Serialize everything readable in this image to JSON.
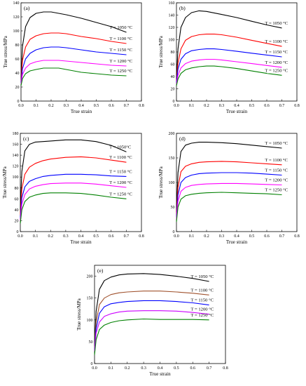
{
  "chart_data": [
    {
      "type": "line",
      "panel_label": "(a)",
      "xlabel": "True strain",
      "ylabel": "True stress/MPa",
      "xlim": [
        0.0,
        0.8
      ],
      "ylim": [
        0,
        140
      ],
      "xticks": [
        "0.0",
        "0.1",
        "0.2",
        "0.3",
        "0.4",
        "0.5",
        "0.6",
        "0.7",
        "0.8"
      ],
      "yticks": [
        "0",
        "20",
        "40",
        "60",
        "80",
        "100",
        "120",
        "140"
      ],
      "series": [
        {
          "name": "T = 1050 °C",
          "color": "#000000",
          "x": [
            0,
            0.01,
            0.03,
            0.06,
            0.1,
            0.15,
            0.2,
            0.3,
            0.4,
            0.5,
            0.6,
            0.65,
            0.7
          ],
          "y": [
            30,
            78,
            106,
            119,
            125,
            127,
            127,
            123,
            118,
            112,
            106,
            102,
            98
          ]
        },
        {
          "name": "T = 1100 °C",
          "color": "#ff0000",
          "x": [
            0,
            0.01,
            0.03,
            0.06,
            0.1,
            0.15,
            0.2,
            0.25,
            0.3,
            0.4,
            0.5,
            0.6,
            0.7
          ],
          "y": [
            28,
            58,
            77,
            88,
            93,
            96,
            97,
            97,
            96,
            92,
            89,
            85,
            82
          ]
        },
        {
          "name": "T = 1150 °C",
          "color": "#0000ff",
          "x": [
            0,
            0.01,
            0.03,
            0.06,
            0.1,
            0.15,
            0.2,
            0.25,
            0.3,
            0.4,
            0.5,
            0.6,
            0.7
          ],
          "y": [
            26,
            46,
            60,
            68,
            73,
            76,
            77,
            77,
            76,
            73,
            70,
            68,
            66
          ]
        },
        {
          "name": "T = 1200 °C",
          "color": "#ff00ff",
          "x": [
            0,
            0.01,
            0.03,
            0.06,
            0.1,
            0.15,
            0.2,
            0.25,
            0.3,
            0.4,
            0.5,
            0.6,
            0.7
          ],
          "y": [
            24,
            38,
            47,
            53,
            56,
            58,
            58,
            58,
            57,
            55,
            53,
            51,
            50
          ]
        },
        {
          "name": "T = 1250 °C",
          "color": "#008000",
          "x": [
            0,
            0.01,
            0.03,
            0.06,
            0.1,
            0.15,
            0.2,
            0.25,
            0.3,
            0.4,
            0.5,
            0.6,
            0.7
          ],
          "y": [
            22,
            32,
            39,
            43,
            45,
            47,
            47,
            47,
            45,
            41,
            39,
            37,
            36
          ]
        }
      ]
    },
    {
      "type": "line",
      "panel_label": "(b)",
      "xlabel": "True strain",
      "ylabel": "True stress/MPa",
      "xlim": [
        0.0,
        0.8
      ],
      "ylim": [
        0,
        160
      ],
      "xticks": [
        "0.0",
        "0.1",
        "0.2",
        "0.3",
        "0.4",
        "0.5",
        "0.6",
        "0.7",
        "0.8"
      ],
      "yticks": [
        "0",
        "20",
        "40",
        "60",
        "80",
        "100",
        "120",
        "140",
        "160"
      ],
      "series": [
        {
          "name": "T = 1050 °C",
          "color": "#000000",
          "x": [
            0,
            0.01,
            0.03,
            0.06,
            0.1,
            0.15,
            0.2,
            0.3,
            0.4,
            0.5,
            0.6,
            0.7
          ],
          "y": [
            35,
            85,
            120,
            136,
            144,
            147,
            146,
            141,
            136,
            130,
            124,
            119
          ]
        },
        {
          "name": "T = 1100 °C",
          "color": "#ff0000",
          "x": [
            0,
            0.01,
            0.03,
            0.06,
            0.1,
            0.15,
            0.2,
            0.25,
            0.3,
            0.4,
            0.5,
            0.6,
            0.7
          ],
          "y": [
            32,
            62,
            85,
            99,
            105,
            108,
            109,
            109,
            108,
            104,
            99,
            94,
            89
          ]
        },
        {
          "name": "T = 1150 °C",
          "color": "#0000ff",
          "x": [
            0,
            0.01,
            0.03,
            0.06,
            0.1,
            0.15,
            0.2,
            0.25,
            0.3,
            0.4,
            0.5,
            0.6,
            0.7
          ],
          "y": [
            30,
            52,
            68,
            77,
            82,
            84,
            85,
            85,
            84,
            81,
            78,
            75,
            72
          ]
        },
        {
          "name": "T = 1200 °C",
          "color": "#ff00ff",
          "x": [
            0,
            0.01,
            0.03,
            0.06,
            0.1,
            0.15,
            0.2,
            0.25,
            0.3,
            0.4,
            0.5,
            0.6,
            0.7
          ],
          "y": [
            27,
            42,
            54,
            61,
            65,
            67,
            68,
            68,
            67,
            64,
            61,
            58,
            55
          ]
        },
        {
          "name": "T = 1250 °C",
          "color": "#008000",
          "x": [
            0,
            0.01,
            0.03,
            0.06,
            0.1,
            0.15,
            0.2,
            0.25,
            0.3,
            0.4,
            0.5,
            0.6,
            0.7
          ],
          "y": [
            25,
            36,
            45,
            51,
            54,
            56,
            57,
            57,
            56,
            53,
            49,
            45,
            42
          ]
        }
      ]
    },
    {
      "type": "line",
      "panel_label": "(c)",
      "xlabel": "True strain",
      "ylabel": "True stress/MPa",
      "xlim": [
        0.0,
        0.8
      ],
      "ylim": [
        0,
        180
      ],
      "xticks": [
        "0.0",
        "0.1",
        "0.2",
        "0.3",
        "0.4",
        "0.5",
        "0.6",
        "0.7",
        "0.8"
      ],
      "yticks": [
        "0",
        "20",
        "40",
        "60",
        "80",
        "100",
        "120",
        "140",
        "160",
        "180"
      ],
      "series": [
        {
          "name": "T = 1050°C",
          "color": "#000000",
          "x": [
            0,
            0.01,
            0.03,
            0.06,
            0.1,
            0.2,
            0.3,
            0.4,
            0.5,
            0.6,
            0.65,
            0.7
          ],
          "y": [
            40,
            110,
            148,
            160,
            164,
            166,
            168,
            168,
            165,
            158,
            152,
            146
          ]
        },
        {
          "name": "T = 1100 °C",
          "color": "#ff0000",
          "x": [
            0,
            0.01,
            0.03,
            0.06,
            0.1,
            0.15,
            0.2,
            0.3,
            0.4,
            0.5,
            0.6,
            0.7
          ],
          "y": [
            30,
            78,
            105,
            118,
            125,
            130,
            133,
            136,
            137,
            135,
            131,
            127
          ]
        },
        {
          "name": "T = 1150 °C",
          "color": "#0000ff",
          "x": [
            0,
            0.01,
            0.03,
            0.06,
            0.1,
            0.15,
            0.2,
            0.3,
            0.4,
            0.5,
            0.6,
            0.7
          ],
          "y": [
            25,
            62,
            82,
            92,
            97,
            101,
            103,
            105,
            105,
            104,
            102,
            101
          ]
        },
        {
          "name": "T = 1200 °C",
          "color": "#ff00ff",
          "x": [
            0,
            0.01,
            0.03,
            0.06,
            0.1,
            0.15,
            0.2,
            0.3,
            0.4,
            0.5,
            0.6,
            0.7
          ],
          "y": [
            20,
            50,
            68,
            78,
            83,
            86,
            88,
            89,
            89,
            87,
            84,
            81
          ]
        },
        {
          "name": "T = 1250 °C",
          "color": "#008000",
          "x": [
            0,
            0.01,
            0.03,
            0.06,
            0.1,
            0.15,
            0.2,
            0.3,
            0.4,
            0.5,
            0.6,
            0.7
          ],
          "y": [
            15,
            40,
            55,
            63,
            67,
            70,
            71,
            71,
            70,
            67,
            63,
            60
          ]
        }
      ]
    },
    {
      "type": "line",
      "panel_label": "(d)",
      "xlabel": "True strain",
      "ylabel": "True stress/MPa",
      "xlim": [
        0.0,
        0.8
      ],
      "ylim": [
        0,
        200
      ],
      "xticks": [
        "0.0",
        "0.1",
        "0.2",
        "0.3",
        "0.4",
        "0.5",
        "0.6",
        "0.7",
        "0.8"
      ],
      "yticks": [
        "0",
        "50",
        "100",
        "150",
        "200"
      ],
      "series": [
        {
          "name": "T = 1050 °C",
          "color": "#000000",
          "x": [
            0,
            0.01,
            0.03,
            0.06,
            0.1,
            0.15,
            0.2,
            0.3,
            0.4,
            0.5,
            0.6,
            0.7
          ],
          "y": [
            40,
            120,
            163,
            176,
            180,
            182,
            182,
            181,
            179,
            176,
            173,
            170
          ]
        },
        {
          "name": "T = 1100 °C",
          "color": "#ff0000",
          "x": [
            0,
            0.01,
            0.03,
            0.06,
            0.1,
            0.15,
            0.2,
            0.3,
            0.4,
            0.5,
            0.6,
            0.7
          ],
          "y": [
            35,
            90,
            122,
            133,
            138,
            141,
            142,
            143,
            142,
            140,
            138,
            136
          ]
        },
        {
          "name": "T = 1150 °C",
          "color": "#0000ff",
          "x": [
            0,
            0.01,
            0.03,
            0.06,
            0.1,
            0.15,
            0.2,
            0.3,
            0.4,
            0.5,
            0.6,
            0.7
          ],
          "y": [
            30,
            75,
            100,
            110,
            115,
            118,
            119,
            120,
            120,
            119,
            117,
            115
          ]
        },
        {
          "name": "T = 1200 °C",
          "color": "#ff00ff",
          "x": [
            0,
            0.01,
            0.03,
            0.06,
            0.1,
            0.15,
            0.2,
            0.3,
            0.4,
            0.5,
            0.6,
            0.7
          ],
          "y": [
            25,
            62,
            82,
            90,
            94,
            96,
            97,
            98,
            98,
            97,
            96,
            95
          ]
        },
        {
          "name": "T = 1250 °C",
          "color": "#008000",
          "x": [
            0,
            0.01,
            0.03,
            0.06,
            0.1,
            0.15,
            0.2,
            0.3,
            0.4,
            0.5,
            0.6,
            0.7
          ],
          "y": [
            20,
            50,
            66,
            73,
            76,
            78,
            79,
            80,
            79,
            78,
            77,
            75
          ]
        }
      ]
    },
    {
      "type": "line",
      "panel_label": "(e)",
      "xlabel": "True strain",
      "ylabel": "True stress/MPa",
      "xlim": [
        0.0,
        0.8
      ],
      "ylim": [
        0,
        225
      ],
      "xticks": [
        "0.0",
        "0.1",
        "0.2",
        "0.3",
        "0.4",
        "0.5",
        "0.6",
        "0.7",
        "0.8"
      ],
      "yticks": [
        "0",
        "50",
        "100",
        "150",
        "200"
      ],
      "series": [
        {
          "name": "T = 1050 °C",
          "color": "#000000",
          "x": [
            0,
            0.01,
            0.03,
            0.06,
            0.1,
            0.15,
            0.2,
            0.3,
            0.4,
            0.5,
            0.6,
            0.7
          ],
          "y": [
            40,
            120,
            170,
            190,
            198,
            203,
            205,
            206,
            204,
            200,
            195,
            188
          ]
        },
        {
          "name": "T = 1100 °C",
          "color": "#a0522d",
          "x": [
            0,
            0.01,
            0.03,
            0.06,
            0.1,
            0.15,
            0.2,
            0.3,
            0.4,
            0.5,
            0.6,
            0.7
          ],
          "y": [
            35,
            95,
            135,
            150,
            158,
            162,
            164,
            166,
            166,
            164,
            161,
            157
          ]
        },
        {
          "name": "T = 1150 °C",
          "color": "#0000ff",
          "x": [
            0,
            0.01,
            0.03,
            0.06,
            0.1,
            0.15,
            0.2,
            0.3,
            0.4,
            0.5,
            0.6,
            0.7
          ],
          "y": [
            30,
            80,
            115,
            130,
            137,
            140,
            142,
            144,
            144,
            142,
            139,
            134
          ]
        },
        {
          "name": "T = 1200 °C",
          "color": "#cc00ff",
          "x": [
            0,
            0.01,
            0.03,
            0.06,
            0.1,
            0.15,
            0.2,
            0.3,
            0.4,
            0.5,
            0.6,
            0.7
          ],
          "y": [
            28,
            70,
            95,
            108,
            114,
            118,
            120,
            121,
            121,
            120,
            117,
            113
          ]
        },
        {
          "name": "T = 1250 °C",
          "color": "#008000",
          "x": [
            0,
            0.01,
            0.03,
            0.06,
            0.1,
            0.15,
            0.2,
            0.3,
            0.4,
            0.5,
            0.6,
            0.7
          ],
          "y": [
            20,
            55,
            78,
            88,
            94,
            98,
            100,
            102,
            101,
            101,
            101,
            100
          ]
        }
      ]
    }
  ]
}
